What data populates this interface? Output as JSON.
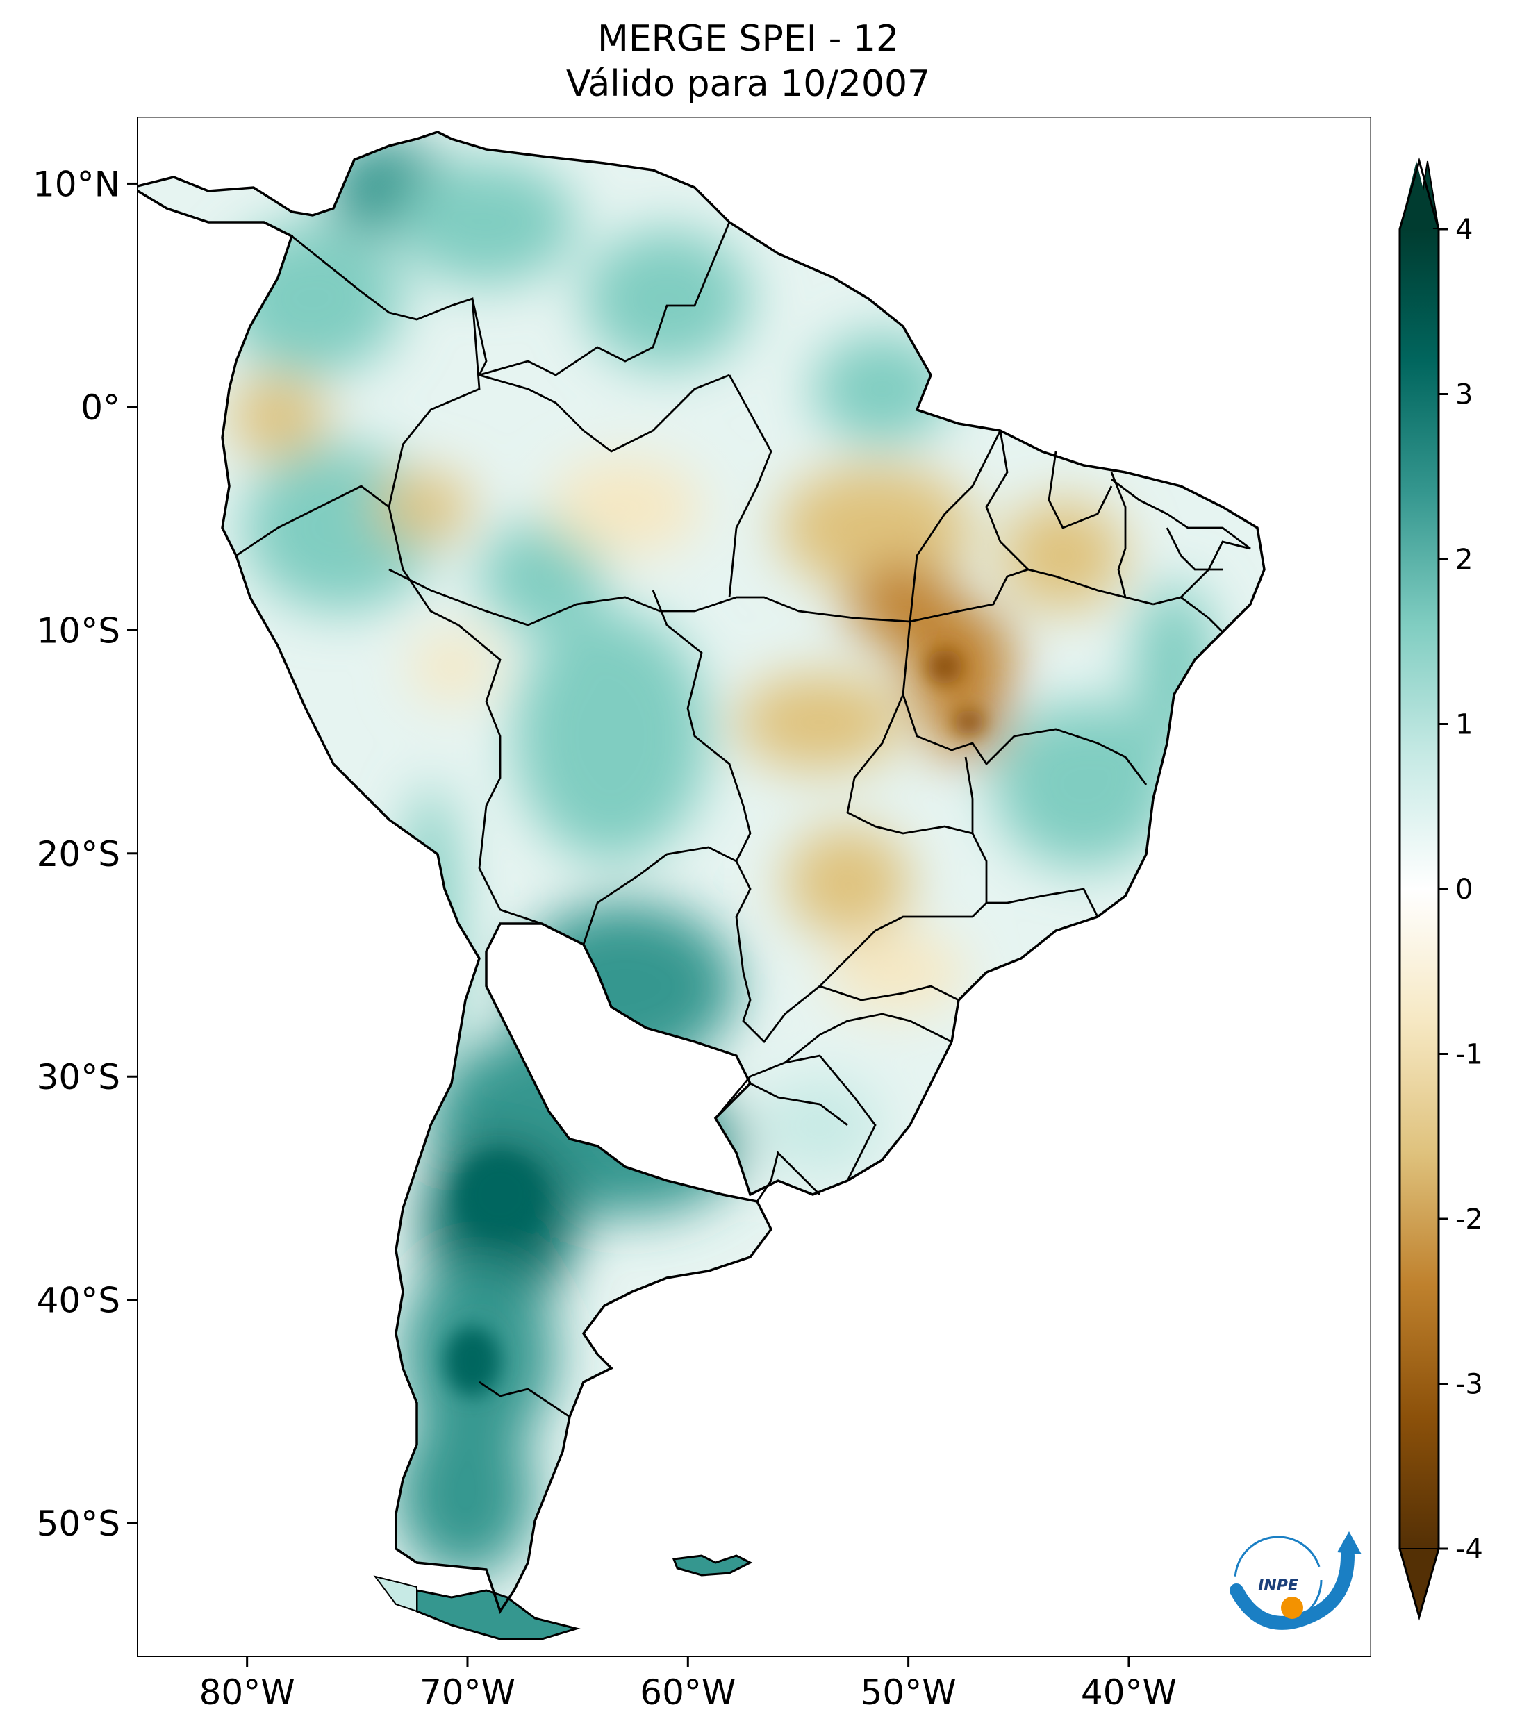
{
  "title": {
    "line1": "MERGE   SPEI - 12",
    "line2": "Válido para 10/2007"
  },
  "map": {
    "lon_range": [
      -85,
      -29
    ],
    "lat_range": [
      -56,
      13
    ],
    "lon_ticks": [
      {
        "value": -80,
        "label": "80°W"
      },
      {
        "value": -70,
        "label": "70°W"
      },
      {
        "value": -60,
        "label": "60°W"
      },
      {
        "value": -50,
        "label": "50°W"
      },
      {
        "value": -40,
        "label": "40°W"
      }
    ],
    "lat_ticks": [
      {
        "value": 10,
        "label": "10°N"
      },
      {
        "value": 0,
        "label": "0°"
      },
      {
        "value": -10,
        "label": "10°S"
      },
      {
        "value": -20,
        "label": "20°S"
      },
      {
        "value": -30,
        "label": "30°S"
      },
      {
        "value": -40,
        "label": "40°S"
      },
      {
        "value": -50,
        "label": "50°S"
      }
    ]
  },
  "colorbar": {
    "range": [
      -4,
      4
    ],
    "ticks": [
      {
        "value": 4,
        "label": "4"
      },
      {
        "value": 3,
        "label": "3"
      },
      {
        "value": 2,
        "label": "2"
      },
      {
        "value": 1,
        "label": "1"
      },
      {
        "value": 0,
        "label": "0"
      },
      {
        "value": -1,
        "label": "-1"
      },
      {
        "value": -2,
        "label": "-2"
      },
      {
        "value": -3,
        "label": "-3"
      },
      {
        "value": -4,
        "label": "-4"
      }
    ],
    "colors": [
      "#543005",
      "#8c510a",
      "#bf812d",
      "#dfc27d",
      "#f6e8c3",
      "#ffffff",
      "#c7eae5",
      "#80cdc1",
      "#35978f",
      "#01665e",
      "#003c30"
    ]
  },
  "logo": {
    "text": "INPE",
    "ring_color": "#1a7fc4",
    "dot_color": "#f39200"
  },
  "colors": {
    "wet": "#80cdc1",
    "very_wet": "#01665e",
    "dry": "#dfc27d",
    "very_dry": "#8c510a",
    "border": "#000000"
  }
}
